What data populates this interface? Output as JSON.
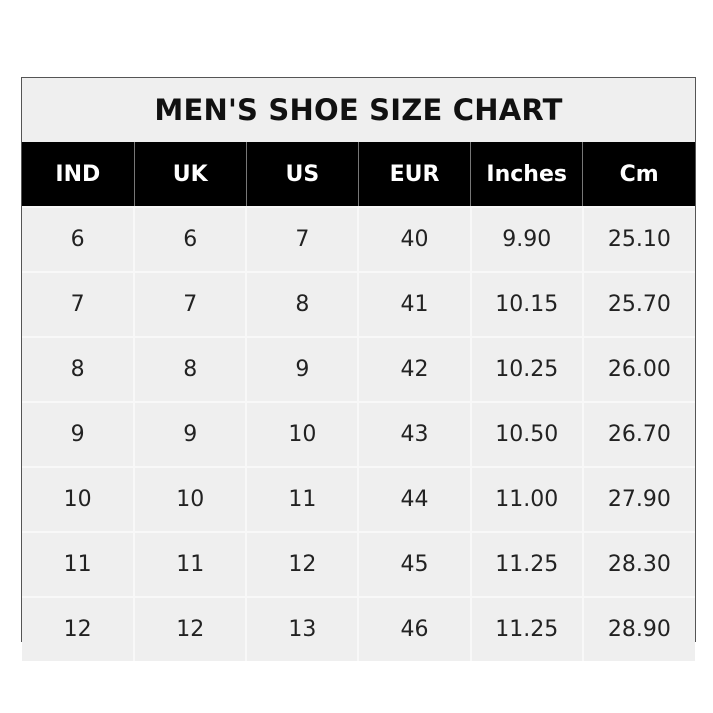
{
  "title": "MEN'S SHOE SIZE CHART",
  "headers": [
    "IND",
    "UK",
    "US",
    "EUR",
    "Inches",
    "Cm"
  ],
  "rows": [
    [
      "6",
      "6",
      "7",
      "40",
      "9.90",
      "25.10"
    ],
    [
      "7",
      "7",
      "8",
      "41",
      "10.15",
      "25.70"
    ],
    [
      "8",
      "8",
      "9",
      "42",
      "10.25",
      "26.00"
    ],
    [
      "9",
      "9",
      "10",
      "43",
      "10.50",
      "26.70"
    ],
    [
      "10",
      "10",
      "11",
      "44",
      "11.00",
      "27.90"
    ],
    [
      "11",
      "11",
      "12",
      "45",
      "11.25",
      "28.30"
    ],
    [
      "12",
      "12",
      "13",
      "46",
      "11.25",
      "28.90"
    ]
  ],
  "colors": {
    "header_bg": "#000000",
    "cell_bg": "#efefef",
    "border": "#555555"
  }
}
